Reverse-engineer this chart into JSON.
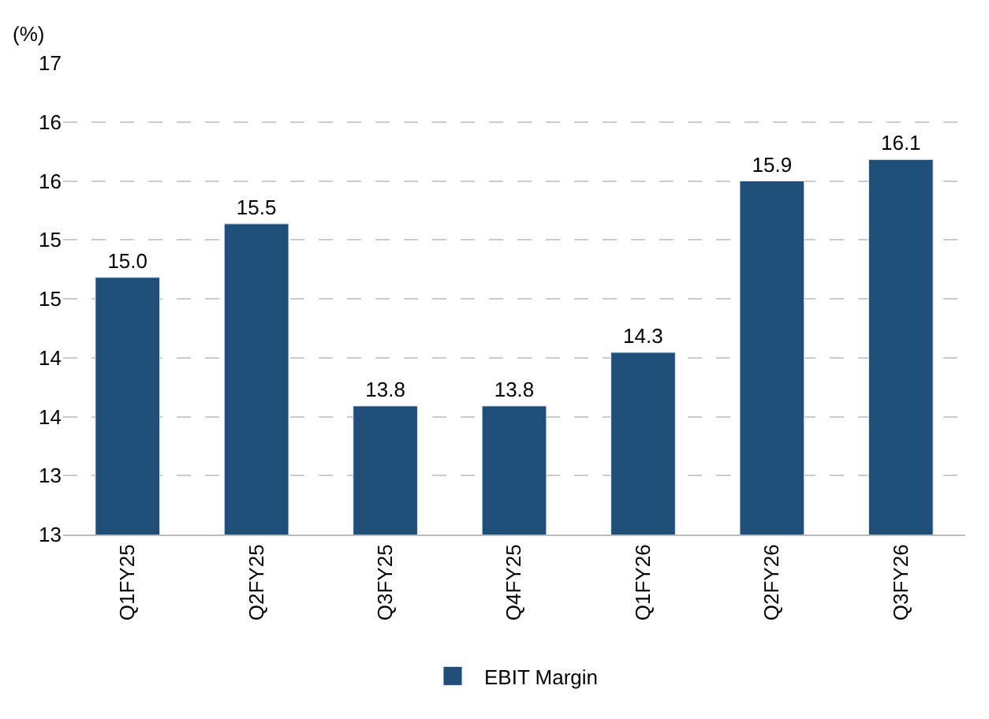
{
  "chart_data": {
    "type": "bar",
    "ylabel": "(%)",
    "categories": [
      "Q1FY25",
      "Q2FY25",
      "Q3FY25",
      "Q4FY25",
      "Q1FY26",
      "Q2FY26",
      "Q3FY26"
    ],
    "series": [
      {
        "name": "EBIT Margin",
        "color": "#1f4e79",
        "values": [
          15.0,
          15.5,
          13.8,
          13.8,
          14.3,
          15.9,
          16.1
        ],
        "value_labels": [
          "15.0",
          "15.5",
          "13.8",
          "13.8",
          "14.3",
          "15.9",
          "16.1"
        ]
      }
    ],
    "ylim": [
      12.6,
      17
    ],
    "yticks": [
      {
        "value": 12.6,
        "label": "13"
      },
      {
        "value": 13.15,
        "label": "13"
      },
      {
        "value": 13.7,
        "label": "14"
      },
      {
        "value": 14.25,
        "label": "14"
      },
      {
        "value": 14.8,
        "label": "15"
      },
      {
        "value": 15.35,
        "label": "15"
      },
      {
        "value": 15.9,
        "label": "16"
      },
      {
        "value": 16.45,
        "label": "16"
      },
      {
        "value": 17,
        "label": "17"
      }
    ],
    "grid": "y",
    "legend": "bottom"
  }
}
